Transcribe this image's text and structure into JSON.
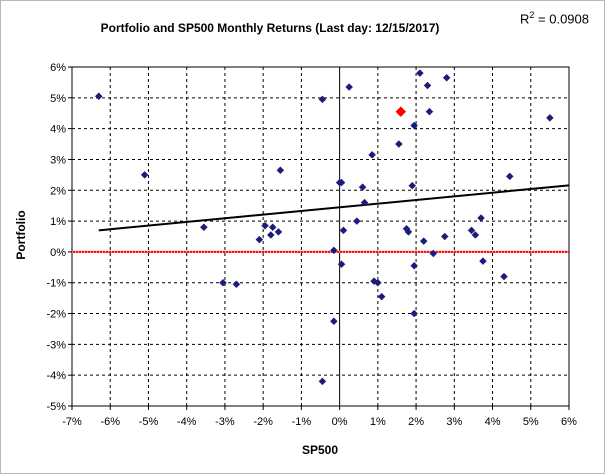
{
  "chart_data": {
    "type": "scatter",
    "title": "Portfolio and SP500 Monthly Returns (Last day: 12/15/2017)",
    "xlabel": "SP500",
    "ylabel": "Portfolio",
    "r_squared": {
      "prefix": "R",
      "superscript": "2",
      "suffix": " = 0.0908"
    },
    "xlim": [
      -7,
      6
    ],
    "ylim": [
      -5,
      6
    ],
    "x_ticks": [
      -7,
      -6,
      -5,
      -4,
      -3,
      -2,
      -1,
      0,
      1,
      2,
      3,
      4,
      5,
      6
    ],
    "y_ticks": [
      -5,
      -4,
      -3,
      -2,
      -1,
      0,
      1,
      2,
      3,
      4,
      5,
      6
    ],
    "x_tick_labels": [
      "-7%",
      "-6%",
      "-5%",
      "-4%",
      "-3%",
      "-2%",
      "-1%",
      "0%",
      "1%",
      "2%",
      "3%",
      "4%",
      "5%",
      "6%"
    ],
    "y_tick_labels": [
      "-5%",
      "-4%",
      "-3%",
      "-2%",
      "-1%",
      "0%",
      "1%",
      "2%",
      "3%",
      "4%",
      "5%",
      "6%"
    ],
    "grid": true,
    "series": [
      {
        "color": "#1c1c7c",
        "marker": "diamond",
        "points": [
          [
            -6.3,
            5.05
          ],
          [
            -5.1,
            2.5
          ],
          [
            -3.55,
            0.8
          ],
          [
            -3.05,
            -1.0
          ],
          [
            -2.7,
            -1.05
          ],
          [
            -2.1,
            0.4
          ],
          [
            -1.95,
            0.85
          ],
          [
            -1.8,
            0.55
          ],
          [
            -1.75,
            0.8
          ],
          [
            -1.6,
            0.65
          ],
          [
            -1.55,
            2.65
          ],
          [
            -0.45,
            4.95
          ],
          [
            -0.45,
            -4.2
          ],
          [
            -0.15,
            0.05
          ],
          [
            -0.15,
            -2.25
          ],
          [
            0.0,
            2.25
          ],
          [
            0.05,
            2.25
          ],
          [
            0.05,
            -0.4
          ],
          [
            0.1,
            0.7
          ],
          [
            0.25,
            5.35
          ],
          [
            0.45,
            1.0
          ],
          [
            0.6,
            2.1
          ],
          [
            0.65,
            1.6
          ],
          [
            0.85,
            3.15
          ],
          [
            0.9,
            -0.95
          ],
          [
            1.0,
            -1.0
          ],
          [
            1.1,
            -1.45
          ],
          [
            1.55,
            3.5
          ],
          [
            1.75,
            0.75
          ],
          [
            1.8,
            0.65
          ],
          [
            1.9,
            2.15
          ],
          [
            1.95,
            -0.45
          ],
          [
            1.95,
            -2.0
          ],
          [
            1.95,
            4.1
          ],
          [
            2.1,
            5.8
          ],
          [
            2.2,
            0.35
          ],
          [
            2.3,
            5.4
          ],
          [
            2.35,
            4.55
          ],
          [
            2.45,
            -0.05
          ],
          [
            2.75,
            0.5
          ],
          [
            2.8,
            5.65
          ],
          [
            3.45,
            0.7
          ],
          [
            3.55,
            0.55
          ],
          [
            3.7,
            1.1
          ],
          [
            3.75,
            -0.3
          ],
          [
            4.3,
            -0.8
          ],
          [
            4.45,
            2.45
          ],
          [
            5.5,
            4.35
          ]
        ]
      },
      {
        "color": "#ff0000",
        "marker": "diamond",
        "points": [
          [
            1.6,
            4.55
          ]
        ]
      }
    ],
    "trendline": {
      "color": "#000000",
      "x": [
        -6.3,
        6.0
      ],
      "y": [
        0.7,
        2.16
      ]
    },
    "zero_line": {
      "color": "#ff0000",
      "y": 0
    }
  }
}
